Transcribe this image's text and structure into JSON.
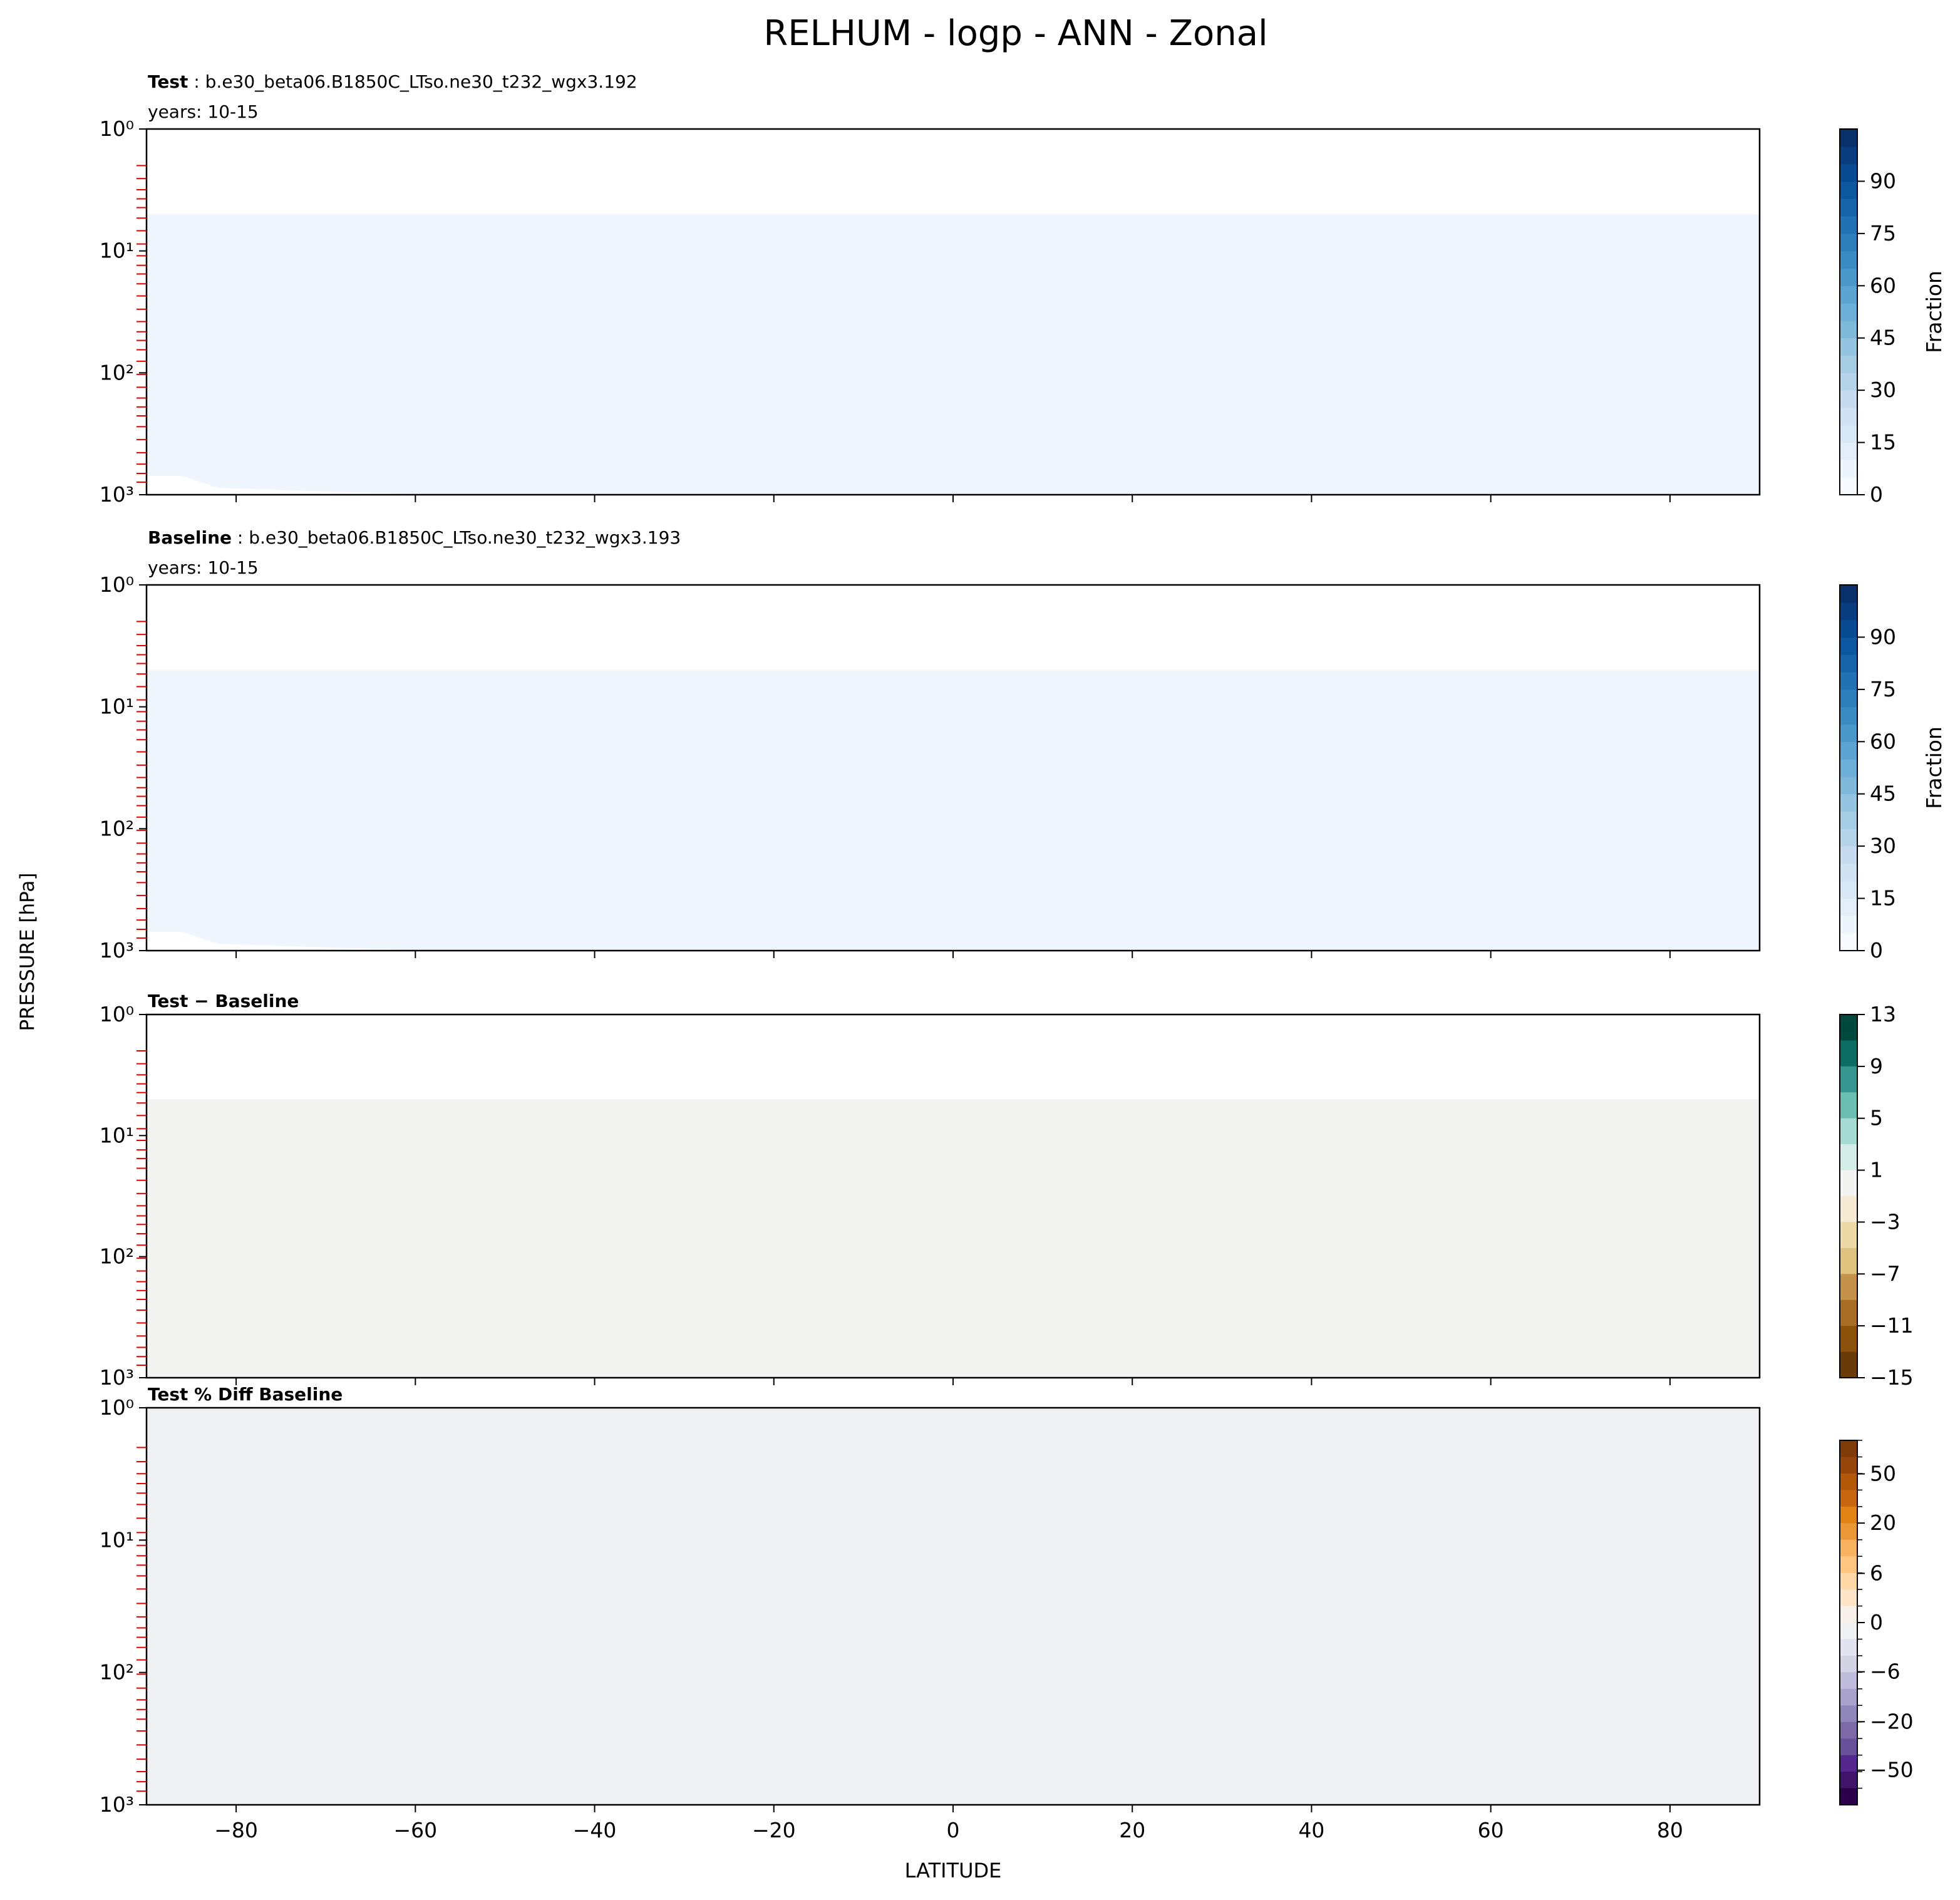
{
  "chart_data": {
    "title": "RELHUM - logp - ANN - Zonal",
    "xlabel": "LATITUDE",
    "ylabel": "PRESSURE [hPa]",
    "xlim": [
      -90,
      90
    ],
    "ylim": [
      1000,
      1
    ],
    "y_scale": "log",
    "x_ticks": [
      "−80",
      "−60",
      "−40",
      "−20",
      "0",
      "20",
      "40",
      "60",
      "80"
    ],
    "x_tick_values": [
      -80,
      -60,
      -40,
      -20,
      0,
      20,
      40,
      60,
      80
    ],
    "y_ticks": [
      "10⁰",
      "10¹",
      "10²",
      "10³"
    ],
    "y_tick_values": [
      1,
      10,
      100,
      1000
    ],
    "panels": [
      {
        "type": "heatmap",
        "label_bold": "Test",
        "label": " : b.e30_beta06.B1850C_LTso.ne30_t232_wgx3.192",
        "years": "years: 10-15",
        "colormap": "Blues",
        "colorbar_label": "Fraction",
        "colorbar_range": [
          0,
          100
        ],
        "colorbar_ticks": [
          "0",
          "15",
          "30",
          "45",
          "60",
          "75",
          "90"
        ],
        "colorbar_tick_values": [
          0,
          15,
          30,
          45,
          60,
          75,
          90
        ]
      },
      {
        "type": "heatmap",
        "label_bold": "Baseline",
        "label": " : b.e30_beta06.B1850C_LTso.ne30_t232_wgx3.193",
        "years": "years: 10-15",
        "colormap": "Blues",
        "colorbar_label": "Fraction",
        "colorbar_range": [
          0,
          100
        ],
        "colorbar_ticks": [
          "0",
          "15",
          "30",
          "45",
          "60",
          "75",
          "90"
        ],
        "colorbar_tick_values": [
          0,
          15,
          30,
          45,
          60,
          75,
          90
        ]
      },
      {
        "type": "heatmap",
        "label_bold": "Test − Baseline",
        "colormap": "BrBG",
        "colorbar_range": [
          -15,
          13
        ],
        "colorbar_ticks": [
          "13",
          "9",
          "5",
          "1",
          "−3",
          "−7",
          "−11",
          "−15"
        ],
        "colorbar_tick_values": [
          13,
          9,
          5,
          1,
          -3,
          -7,
          -11,
          -15
        ],
        "colors": [
          "#01493d",
          "#0b6d64",
          "#35978f",
          "#6bbfb2",
          "#a5dbd0",
          "#d4ede8",
          "#f3f4f2",
          "#f5ead3",
          "#ecd9a6",
          "#dfc27d",
          "#c4924a",
          "#aa6d26",
          "#8c510a",
          "#6a3a08"
        ]
      },
      {
        "type": "heatmap",
        "label_bold": "Test % Diff Baseline",
        "colormap": "PuOr",
        "colorbar_ticks": [
          "50",
          "20",
          "6",
          "0",
          "−6",
          "−20",
          "−50"
        ],
        "colorbar_tick_values": [
          50,
          20,
          6,
          0,
          -6,
          -20,
          -50
        ],
        "colors": [
          "#7f3b08",
          "#96450a",
          "#b35806",
          "#c8660f",
          "#e08214",
          "#ea9735",
          "#f6b25f",
          "#fdc57f",
          "#fed9a6",
          "#fee5c8",
          "#f7f1ea",
          "#eff0f2",
          "#e3e2ef",
          "#d4d3e6",
          "#bfbbdb",
          "#a9a2cc",
          "#8f87b9",
          "#7c6aa8",
          "#67519a",
          "#54288e",
          "#3f1469",
          "#2d004b"
        ]
      }
    ]
  }
}
